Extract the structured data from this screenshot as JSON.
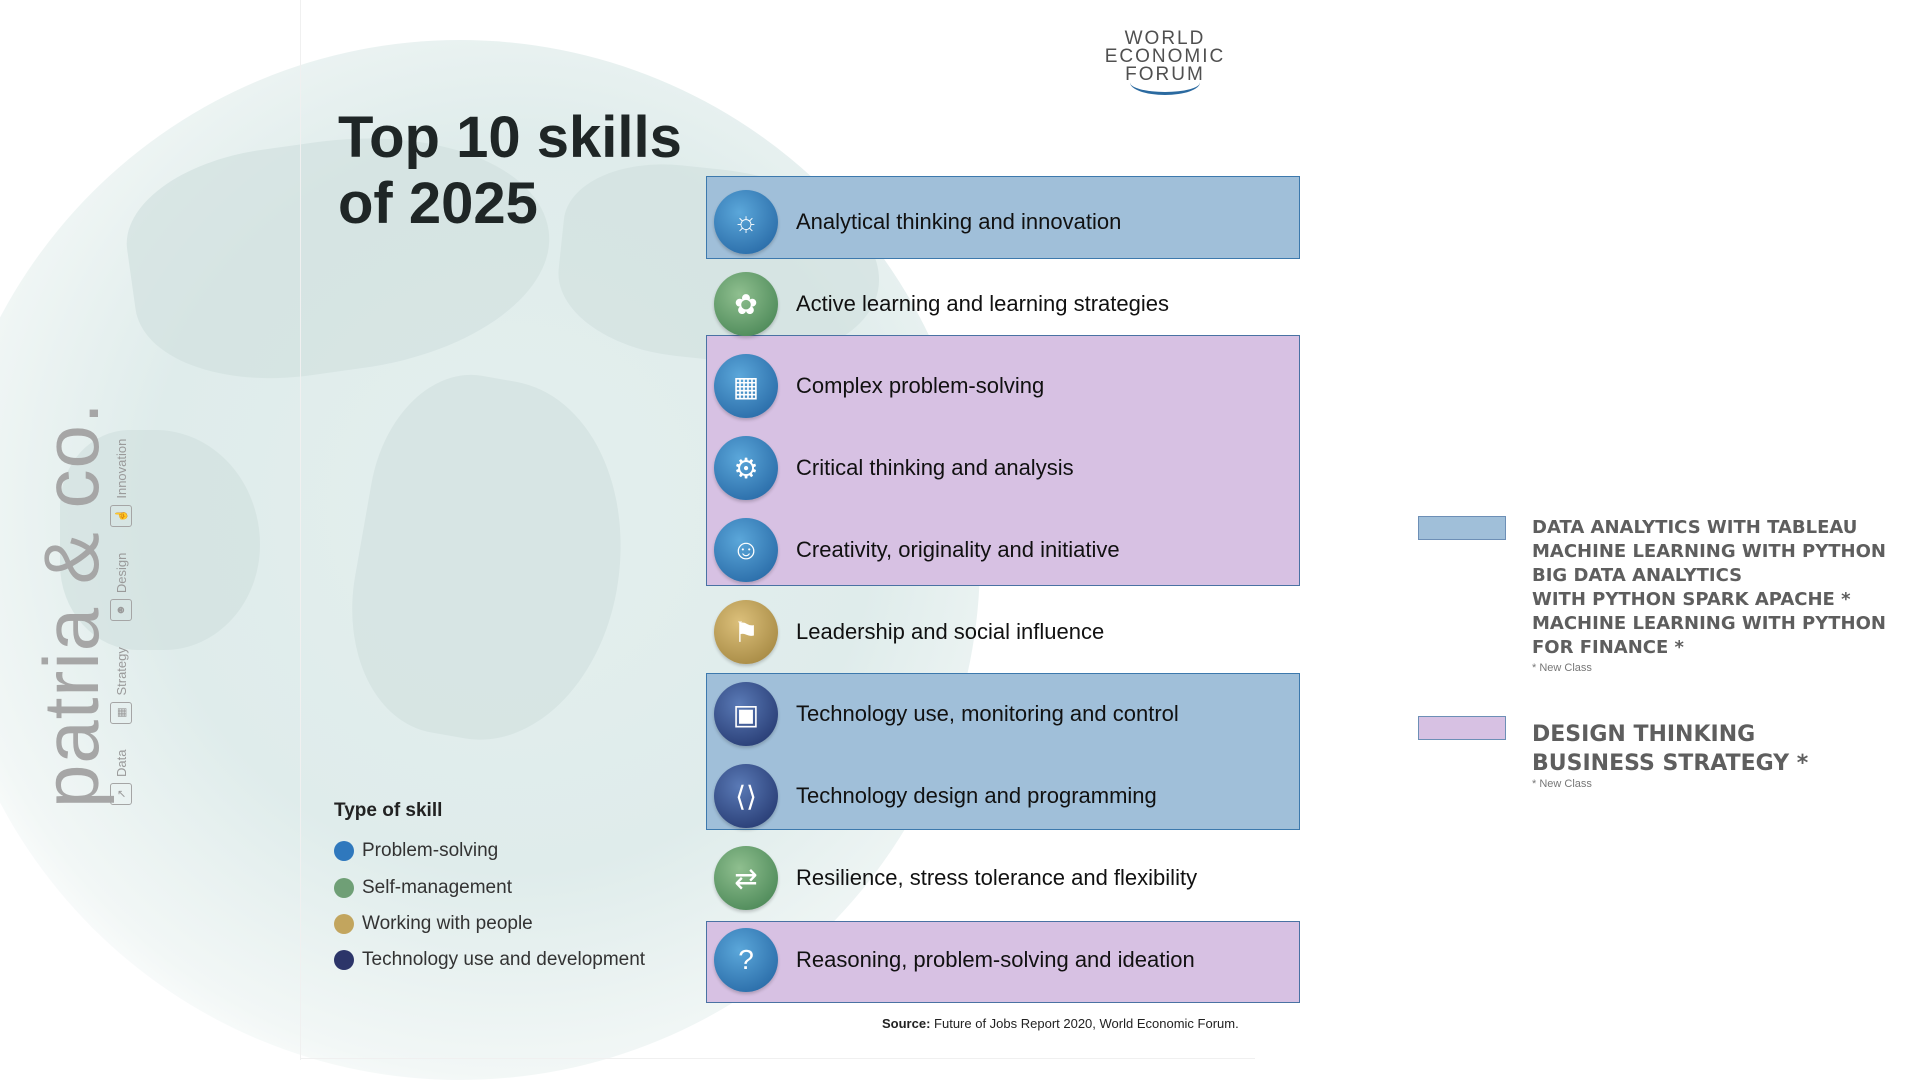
{
  "brand": {
    "name": "patria & co.",
    "categories": [
      {
        "label": "Data",
        "icon": "chart-icon"
      },
      {
        "label": "Strategy",
        "icon": "bar-growth-icon"
      },
      {
        "label": "Design",
        "icon": "people-icon"
      },
      {
        "label": "Innovation",
        "icon": "hand-icon"
      }
    ]
  },
  "logo": {
    "line1": "WORLD",
    "line2": "ECONOMIC",
    "line3": "FORUM"
  },
  "title": {
    "line1": "Top 10 skills",
    "line2": "of 2025"
  },
  "skills": [
    {
      "label": "Analytical thinking and innovation",
      "type": "Problem-solving",
      "icon": "head-lightbulb-icon"
    },
    {
      "label": "Active learning and learning strategies",
      "type": "Self-management",
      "icon": "brain-icon"
    },
    {
      "label": "Complex problem-solving",
      "type": "Problem-solving",
      "icon": "maze-icon"
    },
    {
      "label": "Critical thinking and analysis",
      "type": "Problem-solving",
      "icon": "head-gear-icon"
    },
    {
      "label": "Creativity, originality and initiative",
      "type": "Problem-solving",
      "icon": "head-idea-icon"
    },
    {
      "label": "Leadership and social influence",
      "type": "Working with people",
      "icon": "flag-podium-icon"
    },
    {
      "label": "Technology use, monitoring and control",
      "type": "Technology use and development",
      "icon": "chip-icon"
    },
    {
      "label": "Technology design and programming",
      "type": "Technology use and development",
      "icon": "code-icon"
    },
    {
      "label": "Resilience, stress tolerance and flexibility",
      "type": "Self-management",
      "icon": "arrows-in-icon"
    },
    {
      "label": "Reasoning, problem-solving and ideation",
      "type": "Problem-solving",
      "icon": "question-bubble-icon"
    }
  ],
  "type_legend": {
    "title": "Type of skill",
    "items": [
      {
        "label": "Problem-solving",
        "color": "#2f78bd"
      },
      {
        "label": "Self-management",
        "color": "#6f9f76"
      },
      {
        "label": "Working with people",
        "color": "#c2a55e"
      },
      {
        "label": "Technology use and development",
        "color": "#2c3569"
      }
    ]
  },
  "source": {
    "label": "Source:",
    "text": "Future of Jobs Report 2020, World Economic Forum."
  },
  "course_key": {
    "blue": {
      "color": "#a0bfd9",
      "lines": [
        "DATA ANALYTICS WITH TABLEAU",
        "MACHINE LEARNING WITH PYTHON",
        "BIG DATA ANALYTICS",
        "WITH PYTHON SPARK APACHE *",
        "MACHINE LEARNING WITH PYTHON",
        "FOR FINANCE *"
      ],
      "note": "* New Class"
    },
    "purple": {
      "color": "#d7c1e3",
      "lines": [
        "DESIGN THINKING",
        "BUSINESS STRATEGY *"
      ],
      "note": "* New Class"
    }
  }
}
